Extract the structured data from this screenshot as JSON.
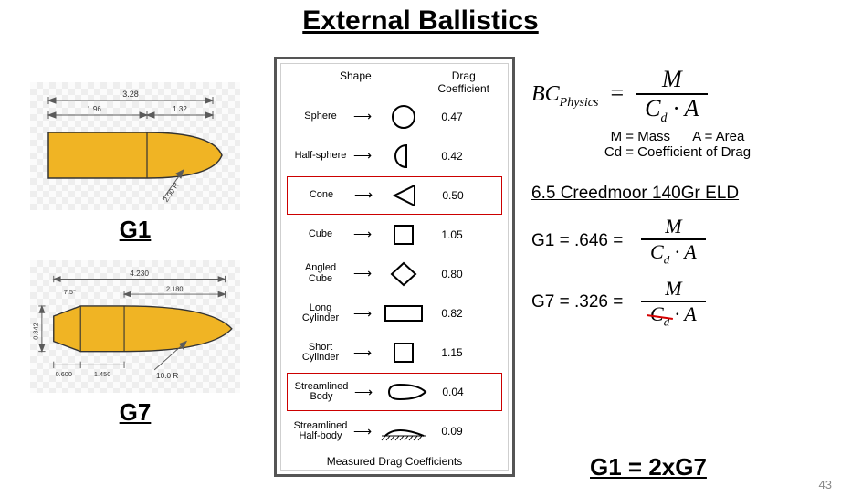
{
  "title": "External Ballistics",
  "page_number": "43",
  "bullet_g1": {
    "label": "G1",
    "body_fill": "#f0b424",
    "dim_total": "3.28",
    "dim_body": "1.96",
    "dim_nose": "1.32",
    "radius_note": "2.00 R"
  },
  "bullet_g7": {
    "label": "G7",
    "body_fill": "#f0b424",
    "dim_total": "4.230",
    "dim_nose": "2.180",
    "boat_angle": "7.5°",
    "boat_h": "0.842",
    "boat_bottom": "0.600",
    "boat_len": "1.450",
    "radius_note": "10.0 R"
  },
  "drag_table": {
    "header_shape": "Shape",
    "header_coeff_line1": "Drag",
    "header_coeff_line2": "Coefficient",
    "footer": "Measured Drag Coefficients",
    "rows": [
      {
        "name": "Sphere",
        "value": "0.47",
        "icon": "circle",
        "highlight": false
      },
      {
        "name": "Half-sphere",
        "value": "0.42",
        "icon": "halfcirc",
        "highlight": false
      },
      {
        "name": "Cone",
        "value": "0.50",
        "icon": "triangle",
        "highlight": true
      },
      {
        "name": "Cube",
        "value": "1.05",
        "icon": "square",
        "highlight": false
      },
      {
        "name": "Angled Cube",
        "value": "0.80",
        "icon": "diamond",
        "highlight": false
      },
      {
        "name": "Long Cylinder",
        "value": "0.82",
        "icon": "rectwide",
        "highlight": false
      },
      {
        "name": "Short Cylinder",
        "value": "1.15",
        "icon": "square",
        "highlight": false
      },
      {
        "name": "Streamlined Body",
        "value": "0.04",
        "icon": "teardrop",
        "highlight": true
      },
      {
        "name": "Streamlined Half-body",
        "value": "0.09",
        "icon": "halfdrop",
        "highlight": false
      }
    ]
  },
  "formula": {
    "bc_label": "BC",
    "bc_sub": "Physics",
    "eq": "=",
    "numerator": "M",
    "denominator": "C_d · A",
    "legend_m": "M = Mass",
    "legend_a": "A = Area",
    "legend_cd": "Cd = Coefficient of Drag"
  },
  "example": {
    "heading": "6.5 Creedmoor 140Gr ELD",
    "g1_lhs": "G1 = .646 =",
    "g7_lhs": "G7 = .326 =",
    "frac_num": "M",
    "frac_den_full": "C_d · A",
    "frac_den_struck_a": "C_d",
    "frac_den_struck_b": " · A",
    "conclusion": "G1 = 2xG7"
  },
  "style": {
    "highlight_border": "#cc0000",
    "checker_light": "#fbfbfb",
    "checker_dark": "#eeeeee",
    "table_border": "#555555",
    "bullet_outline": "#333333",
    "dim_line": "#5b5b5b",
    "text_color": "#000000",
    "strike_color": "#d40000",
    "background": "#ffffff"
  }
}
